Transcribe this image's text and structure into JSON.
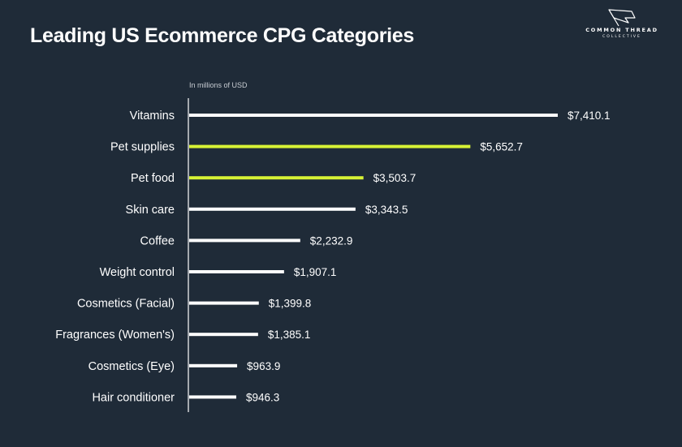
{
  "title": "Leading US Ecommerce CPG Categories",
  "brand": {
    "name": "COMMON THREAD",
    "sub": "COLLECTIVE"
  },
  "unit_note": "In millions of USD",
  "colors": {
    "background": "#1f2b38",
    "bar_default": "#ffffff",
    "bar_highlight": "#d7f235",
    "text": "#ffffff"
  },
  "chart_data": {
    "type": "bar",
    "orientation": "horizontal",
    "title": "Leading US Ecommerce CPG Categories",
    "ylabel": "In millions of USD",
    "categories": [
      "Vitamins",
      "Pet supplies",
      "Pet food",
      "Skin care",
      "Coffee",
      "Weight control",
      "Cosmetics (Facial)",
      "Fragrances (Women's)",
      "Cosmetics (Eye)",
      "Hair conditioner"
    ],
    "values": [
      7410.1,
      5652.7,
      3503.7,
      3343.5,
      2232.9,
      1907.1,
      1399.8,
      1385.1,
      963.9,
      946.3
    ],
    "value_labels": [
      "$7,410.1",
      "$5,652.7",
      "$3,503.7",
      "$3,343.5",
      "$2,232.9",
      "$1,907.1",
      "$1,399.8",
      "$1,385.1",
      "$963.9",
      "$946.3"
    ],
    "highlighted": [
      false,
      true,
      true,
      false,
      false,
      false,
      false,
      false,
      false,
      false
    ],
    "xlim": [
      0,
      7410.1
    ],
    "grid": false,
    "legend": "none"
  }
}
